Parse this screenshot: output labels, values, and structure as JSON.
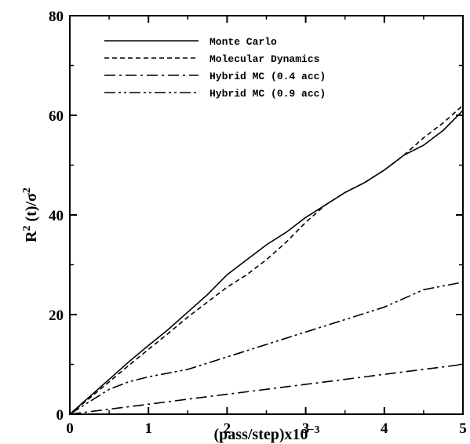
{
  "chart_data": {
    "type": "line",
    "title": "",
    "xlabel": "(pass/step)x10",
    "xlabel_sup": "−3",
    "ylabel": "R",
    "ylabel_sup1": "2",
    "ylabel_mid": " (t)/σ",
    "ylabel_sup2": "2",
    "xlim": [
      0,
      5
    ],
    "ylim": [
      0,
      80
    ],
    "xticks": [
      "0",
      "1",
      "2",
      "3",
      "4",
      "5"
    ],
    "yticks": [
      "0",
      "20",
      "40",
      "60",
      "80"
    ],
    "grid": false,
    "legend_position": "top-left",
    "series": [
      {
        "name": "Monte Carlo",
        "dash": "solid",
        "x": [
          0,
          0.25,
          0.5,
          0.75,
          1.0,
          1.25,
          1.5,
          1.75,
          2.0,
          2.25,
          2.5,
          2.75,
          3.0,
          3.25,
          3.5,
          3.75,
          4.0,
          4.25,
          4.5,
          4.75,
          5.0
        ],
        "y": [
          0,
          3.5,
          7.0,
          10.5,
          13.8,
          17.0,
          20.5,
          24.0,
          28.0,
          31.0,
          34.0,
          36.5,
          39.5,
          42.0,
          44.5,
          46.5,
          49.0,
          52.0,
          54.0,
          57.0,
          61.0
        ]
      },
      {
        "name": "Molecular Dynamics",
        "dash": "dashed",
        "x": [
          0,
          0.25,
          0.5,
          0.75,
          1.0,
          1.25,
          1.5,
          1.75,
          2.0,
          2.25,
          2.5,
          2.75,
          3.0,
          3.25,
          3.5,
          3.75,
          4.0,
          4.25,
          4.5,
          4.75,
          5.0
        ],
        "y": [
          0,
          3.2,
          6.5,
          9.8,
          13.0,
          16.2,
          19.5,
          22.5,
          25.5,
          28.0,
          31.0,
          34.5,
          38.5,
          42.0,
          44.5,
          46.5,
          49.0,
          52.0,
          55.5,
          58.5,
          62.0
        ]
      },
      {
        "name": "Hybrid MC (0.4 acc)",
        "dash": "dashdot",
        "x": [
          0,
          0.5,
          1.0,
          1.5,
          2.0,
          2.5,
          3.0,
          3.5,
          4.0,
          4.5,
          5.0
        ],
        "y": [
          0,
          1.0,
          2.0,
          3.0,
          4.0,
          5.0,
          6.0,
          7.0,
          8.0,
          9.0,
          10.0
        ]
      },
      {
        "name": "Hybrid MC (0.9 acc)",
        "dash": "dashdotdot",
        "x": [
          0,
          0.25,
          0.5,
          0.75,
          1.0,
          1.5,
          2.0,
          2.5,
          3.0,
          3.5,
          4.0,
          4.5,
          5.0
        ],
        "y": [
          0,
          2.5,
          5.0,
          6.5,
          7.5,
          9.0,
          11.5,
          14.0,
          16.5,
          19.0,
          21.5,
          25.0,
          26.5
        ]
      }
    ]
  }
}
